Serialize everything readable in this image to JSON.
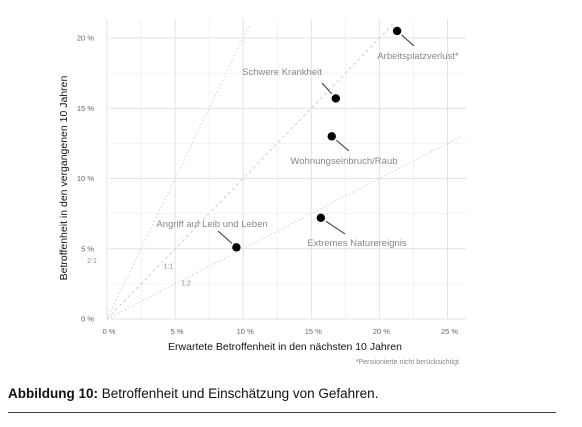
{
  "chart_data": {
    "type": "scatter",
    "xlabel": "Erwartete Betroffenheit in den nächsten 10 Jahren",
    "ylabel": "Betroffenheit in den vergangenen 10 Jahren",
    "xlim": [
      0,
      26
    ],
    "ylim": [
      0,
      21
    ],
    "xticks": [
      0,
      5,
      10,
      15,
      20,
      25
    ],
    "yticks": [
      0,
      5,
      10,
      15,
      20
    ],
    "x_tick_labels": [
      "0 %",
      "5 %",
      "10 %",
      "15 %",
      "20 %",
      "25 %"
    ],
    "y_tick_labels": [
      "0 %",
      "5 %",
      "10 %",
      "15 %",
      "20 %"
    ],
    "grid": true,
    "points": [
      {
        "label": "Arbeitsplatzverlust*",
        "x": 21.3,
        "y": 20.5
      },
      {
        "label": "Schwere Krankheit",
        "x": 16.8,
        "y": 15.7
      },
      {
        "label": "Wohnungseinbruch/Raub",
        "x": 16.5,
        "y": 13.0
      },
      {
        "label": "Extremes Naturereignis",
        "x": 15.7,
        "y": 7.2
      },
      {
        "label": "Angriff auf Leib und Leben",
        "x": 9.5,
        "y": 5.1
      }
    ],
    "reference_lines": [
      {
        "label": "2:1",
        "slope": 2
      },
      {
        "label": "1:1",
        "slope": 1
      },
      {
        "label": "1:2",
        "slope": 0.5
      }
    ],
    "footnote": "*Pensionierte nicht berücksichtigt"
  },
  "caption": {
    "prefix": "Abbildung 10:",
    "text": " Betroffenheit und Einschätzung von Gefahren."
  }
}
